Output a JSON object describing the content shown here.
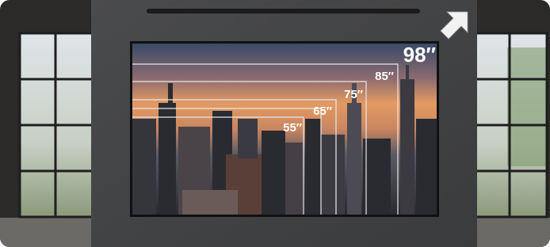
{
  "size_labels": [
    "98″",
    "85″",
    "75″",
    "65″",
    "55″"
  ]
}
